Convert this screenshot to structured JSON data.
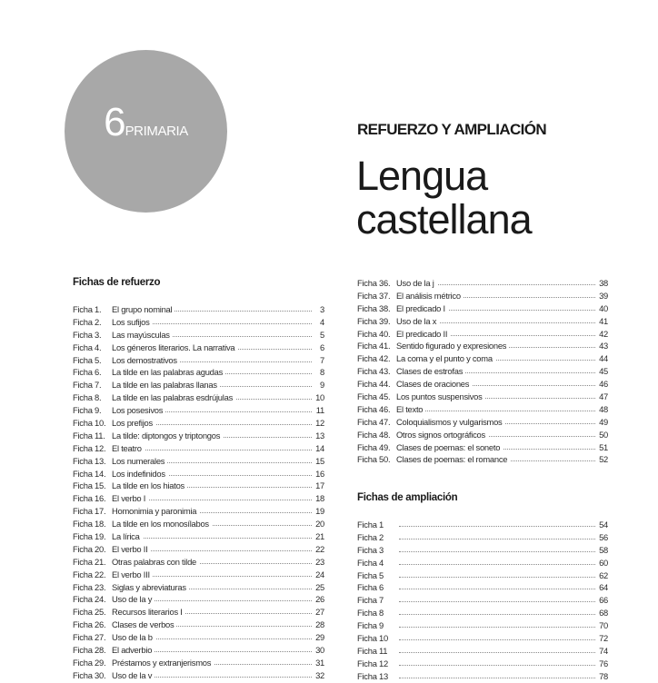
{
  "badge": {
    "number": "6",
    "label": "PRIMARIA"
  },
  "series_title": "REFUERZO Y AMPLIACIÓN",
  "subject_title": {
    "line1": "Lengua",
    "line2": "castellana"
  },
  "refuerzo": {
    "heading": "Fichas de refuerzo",
    "entries_left": [
      {
        "ficha": "Ficha 1.",
        "title": "El grupo nominal",
        "page": "3"
      },
      {
        "ficha": "Ficha 2.",
        "title": "Los sufijos",
        "page": "4"
      },
      {
        "ficha": "Ficha 3.",
        "title": "Las mayúsculas",
        "page": "5"
      },
      {
        "ficha": "Ficha 4.",
        "title": "Los géneros literarios. La narrativa",
        "page": "6"
      },
      {
        "ficha": "Ficha 5.",
        "title": "Los demostrativos",
        "page": "7"
      },
      {
        "ficha": "Ficha 6.",
        "title": "La tilde en las palabras agudas",
        "page": "8"
      },
      {
        "ficha": "Ficha 7.",
        "title": "La tilde en las palabras llanas",
        "page": "9"
      },
      {
        "ficha": "Ficha 8.",
        "title": "La tilde en las palabras esdrújulas",
        "page": "10"
      },
      {
        "ficha": "Ficha 9.",
        "title": "Los posesivos",
        "page": "11"
      },
      {
        "ficha": "Ficha 10.",
        "title": "Los prefijos",
        "page": "12"
      },
      {
        "ficha": "Ficha 11.",
        "title": "La tilde: diptongos y triptongos",
        "page": "13"
      },
      {
        "ficha": "Ficha 12.",
        "title": "El teatro",
        "page": "14"
      },
      {
        "ficha": "Ficha 13.",
        "title": "Los numerales",
        "page": "15"
      },
      {
        "ficha": "Ficha 14.",
        "title": "Los indefinidos",
        "page": "16"
      },
      {
        "ficha": "Ficha 15.",
        "title": "La tilde en los hiatos",
        "page": "17"
      },
      {
        "ficha": "Ficha 16.",
        "title": "El verbo I",
        "page": "18"
      },
      {
        "ficha": "Ficha 17.",
        "title": "Homonimia y paronimia",
        "page": "19"
      },
      {
        "ficha": "Ficha 18.",
        "title": "La tilde en los monosílabos",
        "page": "20"
      },
      {
        "ficha": "Ficha 19.",
        "title": "La lírica",
        "page": "21"
      },
      {
        "ficha": "Ficha 20.",
        "title": "El verbo II",
        "page": "22"
      },
      {
        "ficha": "Ficha 21.",
        "title": "Otras palabras con tilde",
        "page": "23"
      },
      {
        "ficha": "Ficha 22.",
        "title": "El verbo III",
        "page": "24"
      },
      {
        "ficha": "Ficha 23.",
        "title": "Siglas y abreviaturas",
        "page": "25"
      },
      {
        "ficha": "Ficha 24.",
        "title": "Uso de la y",
        "page": "26"
      },
      {
        "ficha": "Ficha 25.",
        "title": "Recursos literarios I",
        "page": "27"
      },
      {
        "ficha": "Ficha 26.",
        "title": "Clases de verbos",
        "page": "28"
      },
      {
        "ficha": "Ficha 27.",
        "title": "Uso de la b",
        "page": "29"
      },
      {
        "ficha": "Ficha 28.",
        "title": "El adverbio",
        "page": "30"
      },
      {
        "ficha": "Ficha 29.",
        "title": "Préstamos y extranjerismos",
        "page": "31"
      },
      {
        "ficha": "Ficha 30.",
        "title": "Uso de la v",
        "page": "32"
      }
    ],
    "entries_right": [
      {
        "ficha": "Ficha 36.",
        "title": "Uso de la j",
        "page": "38"
      },
      {
        "ficha": "Ficha 37.",
        "title": "El análisis métrico",
        "page": "39"
      },
      {
        "ficha": "Ficha 38.",
        "title": "El predicado I",
        "page": "40"
      },
      {
        "ficha": "Ficha 39.",
        "title": "Uso de la x",
        "page": "41"
      },
      {
        "ficha": "Ficha 40.",
        "title": "El predicado II",
        "page": "42"
      },
      {
        "ficha": "Ficha 41.",
        "title": "Sentido figurado y expresiones",
        "page": "43"
      },
      {
        "ficha": "Ficha 42.",
        "title": "La coma y el punto y coma",
        "page": "44"
      },
      {
        "ficha": "Ficha 43.",
        "title": "Clases de estrofas",
        "page": "45"
      },
      {
        "ficha": "Ficha 44.",
        "title": "Clases de oraciones",
        "page": "46"
      },
      {
        "ficha": "Ficha 45.",
        "title": "Los puntos suspensivos",
        "page": "47"
      },
      {
        "ficha": "Ficha 46.",
        "title": "El texto",
        "page": "48"
      },
      {
        "ficha": "Ficha 47.",
        "title": "Coloquialismos y vulgarismos",
        "page": "49"
      },
      {
        "ficha": "Ficha 48.",
        "title": "Otros signos ortográficos",
        "page": "50"
      },
      {
        "ficha": "Ficha 49.",
        "title": "Clases de poemas: el soneto",
        "page": "51"
      },
      {
        "ficha": "Ficha 50.",
        "title": "Clases de poemas: el romance",
        "page": "52"
      }
    ]
  },
  "ampliacion": {
    "heading": "Fichas de ampliación",
    "entries": [
      {
        "ficha": "Ficha 1",
        "title": "",
        "page": "54"
      },
      {
        "ficha": "Ficha 2",
        "title": "",
        "page": "56"
      },
      {
        "ficha": "Ficha 3",
        "title": "",
        "page": "58"
      },
      {
        "ficha": "Ficha 4",
        "title": "",
        "page": "60"
      },
      {
        "ficha": "Ficha 5",
        "title": "",
        "page": "62"
      },
      {
        "ficha": "Ficha 6",
        "title": "",
        "page": "64"
      },
      {
        "ficha": "Ficha 7",
        "title": "",
        "page": "66"
      },
      {
        "ficha": "Ficha 8",
        "title": "",
        "page": "68"
      },
      {
        "ficha": "Ficha 9",
        "title": "",
        "page": "70"
      },
      {
        "ficha": "Ficha 10",
        "title": "",
        "page": "72"
      },
      {
        "ficha": "Ficha 11",
        "title": "",
        "page": "74"
      },
      {
        "ficha": "Ficha 12",
        "title": "",
        "page": "76"
      },
      {
        "ficha": "Ficha 13",
        "title": "",
        "page": "78"
      }
    ]
  }
}
